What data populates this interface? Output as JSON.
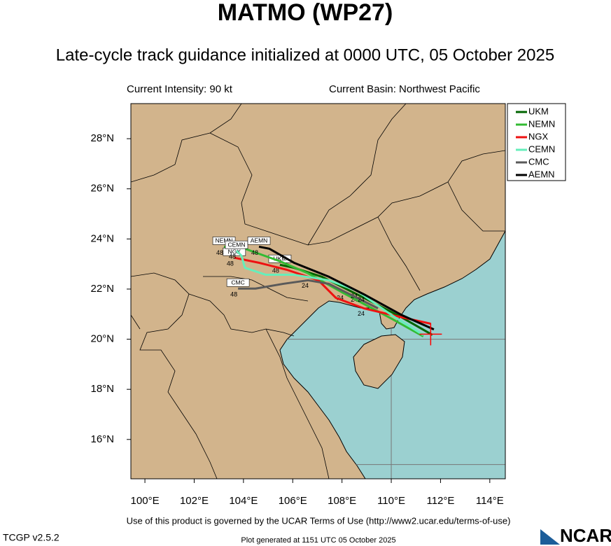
{
  "chart_data": {
    "type": "track-map",
    "title": "MATMO (WP27)",
    "subtitle": "Late-cycle track guidance initialized at 0000 UTC, 05 October 2025",
    "intensity": "Current Intensity: 90 kt",
    "basin": "Current Basin: Northwest Pacific",
    "xlim": [
      99.43,
      114.63
    ],
    "ylim": [
      14.43,
      29.4
    ],
    "xticks": [
      {
        "value": 100,
        "label": "100°E"
      },
      {
        "value": 102,
        "label": "102°E"
      },
      {
        "value": 104,
        "label": "104°E"
      },
      {
        "value": 106,
        "label": "106°E"
      },
      {
        "value": 108,
        "label": "108°E"
      },
      {
        "value": 110,
        "label": "110°E"
      },
      {
        "value": 112,
        "label": "112°E"
      },
      {
        "value": 114,
        "label": "114°E"
      }
    ],
    "yticks": [
      {
        "value": 16,
        "label": "16°N"
      },
      {
        "value": 18,
        "label": "18°N"
      },
      {
        "value": 20,
        "label": "20°N"
      },
      {
        "value": 22,
        "label": "22°N"
      },
      {
        "value": 24,
        "label": "24°N"
      },
      {
        "value": 26,
        "label": "26°N"
      },
      {
        "value": 28,
        "label": "28°N"
      }
    ],
    "grid_lon": [
      100,
      105,
      110
    ],
    "grid_lat": [
      15,
      20,
      25
    ],
    "current_position": {
      "x": 111.6,
      "y": 20.2,
      "color": "#ff0000"
    },
    "tau_labels": [
      "24",
      "48"
    ],
    "series": [
      {
        "name": "UKM",
        "color": "#006400",
        "x": [
          111.67,
          110.37,
          108.61,
          107.19,
          106.05,
          105.48
        ],
        "values": [
          20.17,
          20.9,
          21.79,
          22.49,
          22.85,
          22.97
        ]
      },
      {
        "name": "NEMN",
        "color": "#33bb33",
        "x": [
          111.3,
          110.03,
          108.04,
          106.62,
          105.48,
          104.06,
          103.21
        ],
        "values": [
          20.11,
          20.81,
          21.85,
          22.63,
          23.11,
          23.61,
          23.69
        ]
      },
      {
        "name": "NGX",
        "color": "#ee1111",
        "x": [
          111.59,
          110.31,
          108.89,
          107.75,
          107.04,
          105.76,
          104.63,
          103.63
        ],
        "values": [
          20.62,
          20.9,
          21.23,
          21.65,
          22.35,
          22.77,
          23.05,
          23.25
        ]
      },
      {
        "name": "CEMN",
        "color": "#66eebb",
        "x": [
          111.3,
          110.03,
          108.61,
          107.47,
          106.05,
          104.91,
          104.06,
          103.92,
          103.72
        ],
        "values": [
          20.17,
          20.95,
          21.93,
          22.35,
          22.57,
          22.57,
          22.85,
          23.33,
          23.53
        ]
      },
      {
        "name": "CMC",
        "color": "#5a5a5a",
        "x": [
          109.46,
          107.47,
          106.62,
          105.62,
          104.49,
          103.78
        ],
        "values": [
          21.23,
          22.21,
          22.35,
          22.21,
          22.02,
          22.02
        ]
      },
      {
        "name": "AEMN",
        "color": "#000000",
        "x": [
          111.73,
          110.45,
          108.89,
          107.47,
          106.05,
          105.05,
          104.63
        ],
        "values": [
          20.39,
          20.95,
          21.79,
          22.49,
          23.05,
          23.61,
          23.69
        ]
      }
    ],
    "footer_terms": "Use of this product is governed by the UCAR Terms of Use (http://www2.ucar.edu/terms-of-use)",
    "version": "TCGP v2.5.2",
    "generated": "Plot generated at 1151 UTC   05 October 2025",
    "logo": "NCAR"
  }
}
